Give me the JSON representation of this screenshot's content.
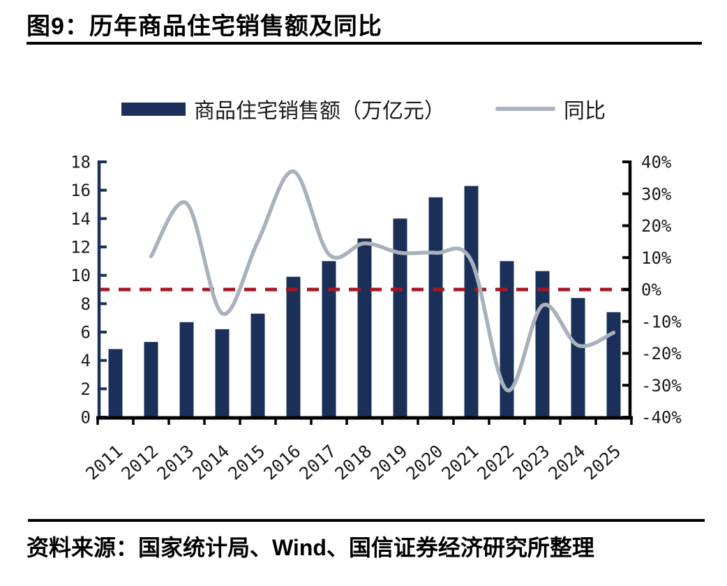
{
  "header": {
    "title": "图9：历年商品住宅销售额及同比"
  },
  "legend": {
    "bar_label": "商品住宅销售额（万亿元）",
    "line_label": "同比"
  },
  "footer": {
    "source": "资料来源：国家统计局、Wind、国信证券经济研究所整理"
  },
  "colors": {
    "bar": "#1b3059",
    "line": "#a9b1bc",
    "zero_line": "#a51722",
    "axis_left": "#1b3059",
    "axis_black": "#000000",
    "text": "#1a1a1a"
  },
  "chart_data": {
    "type": "bar",
    "title": "历年商品住宅销售额及同比",
    "categories": [
      "2011",
      "2012",
      "2013",
      "2014",
      "2015",
      "2016",
      "2017",
      "2018",
      "2019",
      "2020",
      "2021",
      "2022",
      "2023",
      "2024",
      "2025"
    ],
    "series": [
      {
        "name": "商品住宅销售额（万亿元）",
        "type": "bar",
        "axis": "left",
        "values": [
          4.8,
          5.3,
          6.7,
          6.2,
          7.3,
          9.9,
          11.0,
          12.6,
          14.0,
          15.5,
          16.3,
          11.0,
          10.3,
          8.4,
          7.4
        ]
      },
      {
        "name": "同比",
        "type": "line",
        "axis": "right",
        "values": [
          null,
          10.4,
          27.0,
          -7.5,
          15.0,
          37.0,
          11.0,
          14.5,
          11.5,
          11.5,
          9.0,
          -31.5,
          -5.0,
          -17.5,
          -13.5
        ]
      }
    ],
    "left_axis": {
      "min": 0,
      "max": 18,
      "step": 2,
      "tick_labels": [
        "18",
        "16",
        "14",
        "12",
        "10",
        "8",
        "6",
        "4",
        "2",
        "0"
      ]
    },
    "right_axis": {
      "min": -40,
      "max": 40,
      "step": 10,
      "tick_labels": [
        "40%",
        "30%",
        "20%",
        "10%",
        "0%",
        "-10%",
        "-20%",
        "-30%",
        "-40%"
      ]
    },
    "reference_line": {
      "axis": "right",
      "value": 0,
      "style": "dashed"
    },
    "grid": false,
    "legend_position": "top"
  }
}
